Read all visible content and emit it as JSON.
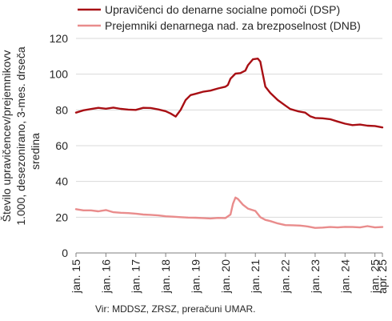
{
  "chart_data": {
    "type": "line",
    "ylim": [
      0,
      120
    ],
    "yticks": [
      0,
      20,
      40,
      60,
      80,
      100,
      120
    ],
    "ylabel_lines": [
      "Število upravičencev/prejemnikovv",
      "1.000, desezonirano, 3-mes. drseča",
      "sredina"
    ],
    "x_start": "2015-01",
    "x_end": "2025-04",
    "xtick_labels": [
      "jan. 15",
      "jan. 16",
      "jan. 17",
      "jan. 18",
      "jan. 19",
      "jan. 20",
      "jan. 21",
      "jan. 22",
      "jan. 23",
      "jan. 24",
      "jan. 25",
      "apr. 25"
    ],
    "grid": "horizontal",
    "legend_position": "top",
    "series": [
      {
        "name": "Upravičenci do denarne socialne pomoči (DSP)",
        "color": "#A80F14",
        "points": [
          [
            "2015-01",
            78.5
          ],
          [
            "2015-04",
            79.8
          ],
          [
            "2015-07",
            80.5
          ],
          [
            "2015-10",
            81.2
          ],
          [
            "2016-01",
            80.7
          ],
          [
            "2016-04",
            81.3
          ],
          [
            "2016-07",
            80.6
          ],
          [
            "2016-10",
            80.2
          ],
          [
            "2017-01",
            80.0
          ],
          [
            "2017-04",
            81.2
          ],
          [
            "2017-07",
            81.1
          ],
          [
            "2017-10",
            80.3
          ],
          [
            "2018-01",
            79.3
          ],
          [
            "2018-03",
            78.0
          ],
          [
            "2018-05",
            76.3
          ],
          [
            "2018-07",
            80.0
          ],
          [
            "2018-09",
            85.5
          ],
          [
            "2018-11",
            88.3
          ],
          [
            "2019-01",
            89.0
          ],
          [
            "2019-04",
            90.2
          ],
          [
            "2019-07",
            90.8
          ],
          [
            "2019-10",
            92.0
          ],
          [
            "2020-01",
            93.0
          ],
          [
            "2020-02",
            94.0
          ],
          [
            "2020-03",
            97.5
          ],
          [
            "2020-05",
            100.3
          ],
          [
            "2020-07",
            100.6
          ],
          [
            "2020-09",
            102.0
          ],
          [
            "2020-10",
            105.0
          ],
          [
            "2020-12",
            108.3
          ],
          [
            "2021-02",
            108.7
          ],
          [
            "2021-03",
            107.0
          ],
          [
            "2021-04",
            100.0
          ],
          [
            "2021-05",
            93.0
          ],
          [
            "2021-07",
            89.5
          ],
          [
            "2021-10",
            85.5
          ],
          [
            "2022-01",
            82.5
          ],
          [
            "2022-03",
            80.5
          ],
          [
            "2022-06",
            79.3
          ],
          [
            "2022-09",
            78.5
          ],
          [
            "2022-11",
            76.5
          ],
          [
            "2023-01",
            75.5
          ],
          [
            "2023-04",
            75.3
          ],
          [
            "2023-07",
            74.8
          ],
          [
            "2023-10",
            73.5
          ],
          [
            "2024-01",
            72.3
          ],
          [
            "2024-04",
            71.5
          ],
          [
            "2024-07",
            71.8
          ],
          [
            "2024-10",
            71.2
          ],
          [
            "2025-01",
            71.0
          ],
          [
            "2025-04",
            70.2
          ]
        ]
      },
      {
        "name": "Prejemniki denarnega nad. za brezposelnost (DNB)",
        "color": "#E98C8C",
        "points": [
          [
            "2015-01",
            24.5
          ],
          [
            "2015-04",
            23.8
          ],
          [
            "2015-07",
            23.8
          ],
          [
            "2015-10",
            23.3
          ],
          [
            "2016-01",
            24.0
          ],
          [
            "2016-04",
            22.8
          ],
          [
            "2016-07",
            22.5
          ],
          [
            "2016-10",
            22.3
          ],
          [
            "2017-01",
            22.0
          ],
          [
            "2017-04",
            21.5
          ],
          [
            "2017-07",
            21.3
          ],
          [
            "2017-10",
            21.0
          ],
          [
            "2018-01",
            20.5
          ],
          [
            "2018-04",
            20.3
          ],
          [
            "2018-07",
            20.0
          ],
          [
            "2018-10",
            19.8
          ],
          [
            "2019-01",
            19.7
          ],
          [
            "2019-04",
            19.5
          ],
          [
            "2019-07",
            19.3
          ],
          [
            "2019-10",
            19.6
          ],
          [
            "2020-01",
            19.5
          ],
          [
            "2020-03",
            21.5
          ],
          [
            "2020-04",
            27.5
          ],
          [
            "2020-05",
            31.0
          ],
          [
            "2020-06",
            30.2
          ],
          [
            "2020-08",
            27.0
          ],
          [
            "2020-10",
            24.8
          ],
          [
            "2021-01",
            23.5
          ],
          [
            "2021-03",
            20.0
          ],
          [
            "2021-05",
            18.5
          ],
          [
            "2021-07",
            17.8
          ],
          [
            "2021-10",
            16.5
          ],
          [
            "2022-01",
            15.6
          ],
          [
            "2022-04",
            15.5
          ],
          [
            "2022-07",
            15.3
          ],
          [
            "2022-10",
            14.8
          ],
          [
            "2023-01",
            14.0
          ],
          [
            "2023-04",
            14.2
          ],
          [
            "2023-07",
            14.5
          ],
          [
            "2023-10",
            14.3
          ],
          [
            "2024-01",
            14.6
          ],
          [
            "2024-04",
            14.5
          ],
          [
            "2024-07",
            14.3
          ],
          [
            "2024-10",
            15.0
          ],
          [
            "2025-01",
            14.3
          ],
          [
            "2025-04",
            14.5
          ]
        ]
      }
    ]
  },
  "source": "Vir: MDDSZ, ZRSZ, preračuni UMAR."
}
